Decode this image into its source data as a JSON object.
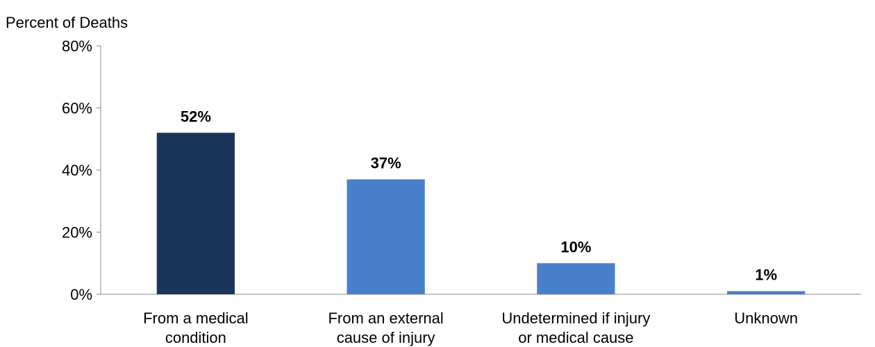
{
  "chart_data": {
    "type": "bar",
    "ylabel": "Percent of Deaths",
    "xlabel": "",
    "categories": [
      [
        "From a medical",
        "condition"
      ],
      [
        "From an external",
        "cause of injury"
      ],
      [
        "Undetermined if injury",
        "or medical cause"
      ],
      [
        "Unknown"
      ]
    ],
    "values": [
      52,
      37,
      10,
      1
    ],
    "data_labels": [
      "52%",
      "37%",
      "10%",
      "1%"
    ],
    "ylim": [
      0,
      80
    ],
    "yticks": [
      0,
      20,
      40,
      60,
      80
    ],
    "ytick_labels": [
      "0%",
      "20%",
      "40%",
      "60%",
      "80%"
    ],
    "bar_colors": [
      "#1c365b",
      "#4a7fcb",
      "#4a7fcb",
      "#4a7fcb"
    ],
    "axis_color": "#888888",
    "grid": false,
    "legend": "none"
  }
}
